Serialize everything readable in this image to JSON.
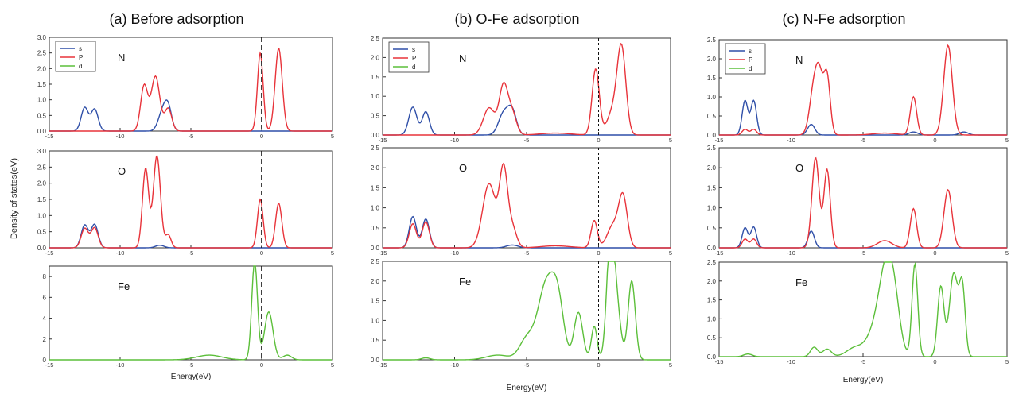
{
  "figure": {
    "ylabel": "Density of states(eV)",
    "colors": {
      "s": "#2f4fa8",
      "p": "#e8333a",
      "d": "#5cbf3a",
      "axis": "#333333",
      "fermi": "#111111"
    }
  },
  "chart_data": [
    {
      "type": "line",
      "title": "(a) Before adsorption",
      "xlabel": "Energy(eV)",
      "xlim": [
        -15,
        5
      ],
      "xticks": [
        -15,
        -10,
        -5,
        0,
        5
      ],
      "fermi_level": 0,
      "panels": [
        {
          "label": "N",
          "ylim": [
            0,
            3.0
          ],
          "yticks": [
            "0.0",
            "0.5",
            "1.0",
            "1.5",
            "2.0",
            "2.5",
            "3.0"
          ],
          "legend": [
            "s",
            "P",
            "d"
          ],
          "series": [
            {
              "name": "s",
              "peaks": [
                [
                  -12.5,
                  0.75,
                  0.25
                ],
                [
                  -11.8,
                  0.7,
                  0.25
                ],
                [
                  -7.0,
                  0.6,
                  0.3
                ],
                [
                  -6.6,
                  0.68,
                  0.25
                ]
              ]
            },
            {
              "name": "P",
              "peaks": [
                [
                  -8.3,
                  1.45,
                  0.25
                ],
                [
                  -7.5,
                  1.75,
                  0.3
                ],
                [
                  -6.6,
                  0.72,
                  0.25
                ],
                [
                  -0.1,
                  2.5,
                  0.2
                ],
                [
                  1.2,
                  2.65,
                  0.25
                ]
              ]
            }
          ]
        },
        {
          "label": "O",
          "ylim": [
            0,
            3.0
          ],
          "yticks": [
            "0.0",
            "0.5",
            "1.0",
            "1.5",
            "2.0",
            "2.5",
            "3.0"
          ],
          "series": [
            {
              "name": "s",
              "peaks": [
                [
                  -12.5,
                  0.7,
                  0.25
                ],
                [
                  -11.8,
                  0.72,
                  0.25
                ],
                [
                  -7.2,
                  0.08,
                  0.3
                ]
              ]
            },
            {
              "name": "P",
              "peaks": [
                [
                  -12.5,
                  0.6,
                  0.25
                ],
                [
                  -11.8,
                  0.62,
                  0.25
                ],
                [
                  -8.2,
                  2.45,
                  0.22
                ],
                [
                  -7.4,
                  2.85,
                  0.25
                ],
                [
                  -6.6,
                  0.4,
                  0.2
                ],
                [
                  -0.1,
                  1.5,
                  0.2
                ],
                [
                  1.2,
                  1.38,
                  0.22
                ]
              ]
            }
          ]
        },
        {
          "label": "Fe",
          "ylim": [
            0,
            9
          ],
          "yticks": [
            "0",
            "2",
            "4",
            "6",
            "8"
          ],
          "series": [
            {
              "name": "d",
              "peaks": [
                [
                  -3.7,
                  0.45,
                  0.9
                ],
                [
                  -0.5,
                  9.5,
                  0.2
                ],
                [
                  0.5,
                  4.6,
                  0.3
                ],
                [
                  1.8,
                  0.45,
                  0.3
                ]
              ]
            }
          ]
        }
      ]
    },
    {
      "type": "line",
      "title": "(b) O-Fe adsorption",
      "xlabel": "Energy(eV)",
      "xlim": [
        -15,
        5
      ],
      "xticks": [
        -15,
        -10,
        -5,
        0,
        5
      ],
      "fermi_level": 0,
      "panels": [
        {
          "label": "N",
          "ylim": [
            0,
            2.5
          ],
          "yticks": [
            "0.0",
            "0.5",
            "1.0",
            "1.5",
            "2.0",
            "2.5"
          ],
          "legend": [
            "s",
            "P",
            "d"
          ],
          "series": [
            {
              "name": "s",
              "peaks": [
                [
                  -12.9,
                  0.72,
                  0.28
                ],
                [
                  -12.0,
                  0.6,
                  0.25
                ],
                [
                  -6.6,
                  0.55,
                  0.35
                ],
                [
                  -6.0,
                  0.6,
                  0.3
                ]
              ]
            },
            {
              "name": "P",
              "peaks": [
                [
                  -7.6,
                  0.7,
                  0.4
                ],
                [
                  -6.6,
                  1.25,
                  0.3
                ],
                [
                  -6.0,
                  0.55,
                  0.3
                ],
                [
                  -3.0,
                  0.05,
                  1.0
                ],
                [
                  -0.2,
                  1.7,
                  0.25
                ],
                [
                  1.0,
                  0.6,
                  0.4
                ],
                [
                  1.6,
                  2.15,
                  0.3
                ]
              ]
            }
          ]
        },
        {
          "label": "O",
          "ylim": [
            0,
            2.5
          ],
          "yticks": [
            "0.0",
            "0.5",
            "1.0",
            "1.5",
            "2.0",
            "2.5"
          ],
          "series": [
            {
              "name": "s",
              "peaks": [
                [
                  -12.9,
                  0.78,
                  0.25
                ],
                [
                  -12.0,
                  0.72,
                  0.25
                ],
                [
                  -6.0,
                  0.07,
                  0.4
                ]
              ]
            },
            {
              "name": "P",
              "peaks": [
                [
                  -12.9,
                  0.6,
                  0.25
                ],
                [
                  -12.0,
                  0.65,
                  0.25
                ],
                [
                  -7.6,
                  1.6,
                  0.45
                ],
                [
                  -6.6,
                  1.9,
                  0.28
                ],
                [
                  -6.0,
                  0.5,
                  0.3
                ],
                [
                  -3.0,
                  0.05,
                  1.0
                ],
                [
                  -0.3,
                  0.68,
                  0.22
                ],
                [
                  1.0,
                  0.55,
                  0.4
                ],
                [
                  1.7,
                  1.25,
                  0.3
                ]
              ]
            }
          ]
        },
        {
          "label": "Fe",
          "ylim": [
            0,
            2.5
          ],
          "yticks": [
            "0.0",
            "0.5",
            "1.0",
            "1.5",
            "2.0",
            "2.5"
          ],
          "series": [
            {
              "name": "d",
              "peaks": [
                [
                  -12.0,
                  0.05,
                  0.3
                ],
                [
                  -7.0,
                  0.12,
                  0.8
                ],
                [
                  -5.0,
                  0.5,
                  0.5
                ],
                [
                  -3.6,
                  1.95,
                  0.6
                ],
                [
                  -2.8,
                  1.1,
                  0.4
                ],
                [
                  -1.4,
                  1.2,
                  0.3
                ],
                [
                  -0.3,
                  0.85,
                  0.2
                ],
                [
                  0.8,
                  2.7,
                  0.25
                ],
                [
                  1.2,
                  1.5,
                  0.3
                ],
                [
                  2.3,
                  2.0,
                  0.25
                ]
              ]
            }
          ]
        }
      ]
    },
    {
      "type": "line",
      "title": "(c) N-Fe adsorption",
      "xlabel": "Energy(eV)",
      "xlim": [
        -15,
        5
      ],
      "xticks": [
        -15,
        -10,
        -5,
        0,
        5
      ],
      "fermi_level": 0,
      "panels": [
        {
          "label": "N",
          "ylim": [
            0,
            2.5
          ],
          "yticks": [
            "0.0",
            "0.5",
            "1.0",
            "1.5",
            "2.0",
            "2.5"
          ],
          "legend": [
            "s",
            "P",
            "d"
          ],
          "series": [
            {
              "name": "s",
              "peaks": [
                [
                  -13.2,
                  0.9,
                  0.2
                ],
                [
                  -12.6,
                  0.9,
                  0.2
                ],
                [
                  -8.6,
                  0.28,
                  0.25
                ],
                [
                  -1.5,
                  0.08,
                  0.3
                ],
                [
                  2.0,
                  0.08,
                  0.3
                ]
              ]
            },
            {
              "name": "P",
              "peaks": [
                [
                  -13.2,
                  0.15,
                  0.2
                ],
                [
                  -12.6,
                  0.15,
                  0.2
                ],
                [
                  -8.4,
                  1.25,
                  0.3
                ],
                [
                  -8.0,
                  1.2,
                  0.25
                ],
                [
                  -7.5,
                  1.5,
                  0.22
                ],
                [
                  -3.5,
                  0.05,
                  0.8
                ],
                [
                  -1.5,
                  1.0,
                  0.22
                ],
                [
                  0.9,
                  2.35,
                  0.3
                ]
              ]
            }
          ]
        },
        {
          "label": "O",
          "ylim": [
            0,
            2.5
          ],
          "yticks": [
            "0.0",
            "0.5",
            "1.0",
            "1.5",
            "2.0",
            "2.5"
          ],
          "series": [
            {
              "name": "s",
              "peaks": [
                [
                  -13.2,
                  0.5,
                  0.2
                ],
                [
                  -12.6,
                  0.52,
                  0.2
                ],
                [
                  -8.6,
                  0.42,
                  0.22
                ]
              ]
            },
            {
              "name": "P",
              "peaks": [
                [
                  -13.2,
                  0.22,
                  0.2
                ],
                [
                  -12.6,
                  0.22,
                  0.2
                ],
                [
                  -8.3,
                  2.25,
                  0.25
                ],
                [
                  -7.5,
                  1.95,
                  0.22
                ],
                [
                  -3.5,
                  0.18,
                  0.5
                ],
                [
                  -1.5,
                  0.98,
                  0.22
                ],
                [
                  0.9,
                  1.45,
                  0.28
                ]
              ]
            }
          ]
        },
        {
          "label": "Fe",
          "ylim": [
            0,
            2.5
          ],
          "yticks": [
            "0.0",
            "0.5",
            "1.0",
            "1.5",
            "2.0",
            "2.5"
          ],
          "series": [
            {
              "name": "d",
              "peaks": [
                [
                  -13.0,
                  0.07,
                  0.3
                ],
                [
                  -8.4,
                  0.25,
                  0.25
                ],
                [
                  -7.5,
                  0.2,
                  0.3
                ],
                [
                  -5.5,
                  0.25,
                  0.6
                ],
                [
                  -4.3,
                  0.5,
                  0.5
                ],
                [
                  -3.4,
                  2.25,
                  0.5
                ],
                [
                  -2.8,
                  1.0,
                  0.4
                ],
                [
                  -1.4,
                  2.45,
                  0.2
                ],
                [
                  0.4,
                  1.85,
                  0.22
                ],
                [
                  1.3,
                  2.2,
                  0.3
                ],
                [
                  1.9,
                  1.75,
                  0.2
                ]
              ]
            }
          ]
        }
      ]
    }
  ]
}
